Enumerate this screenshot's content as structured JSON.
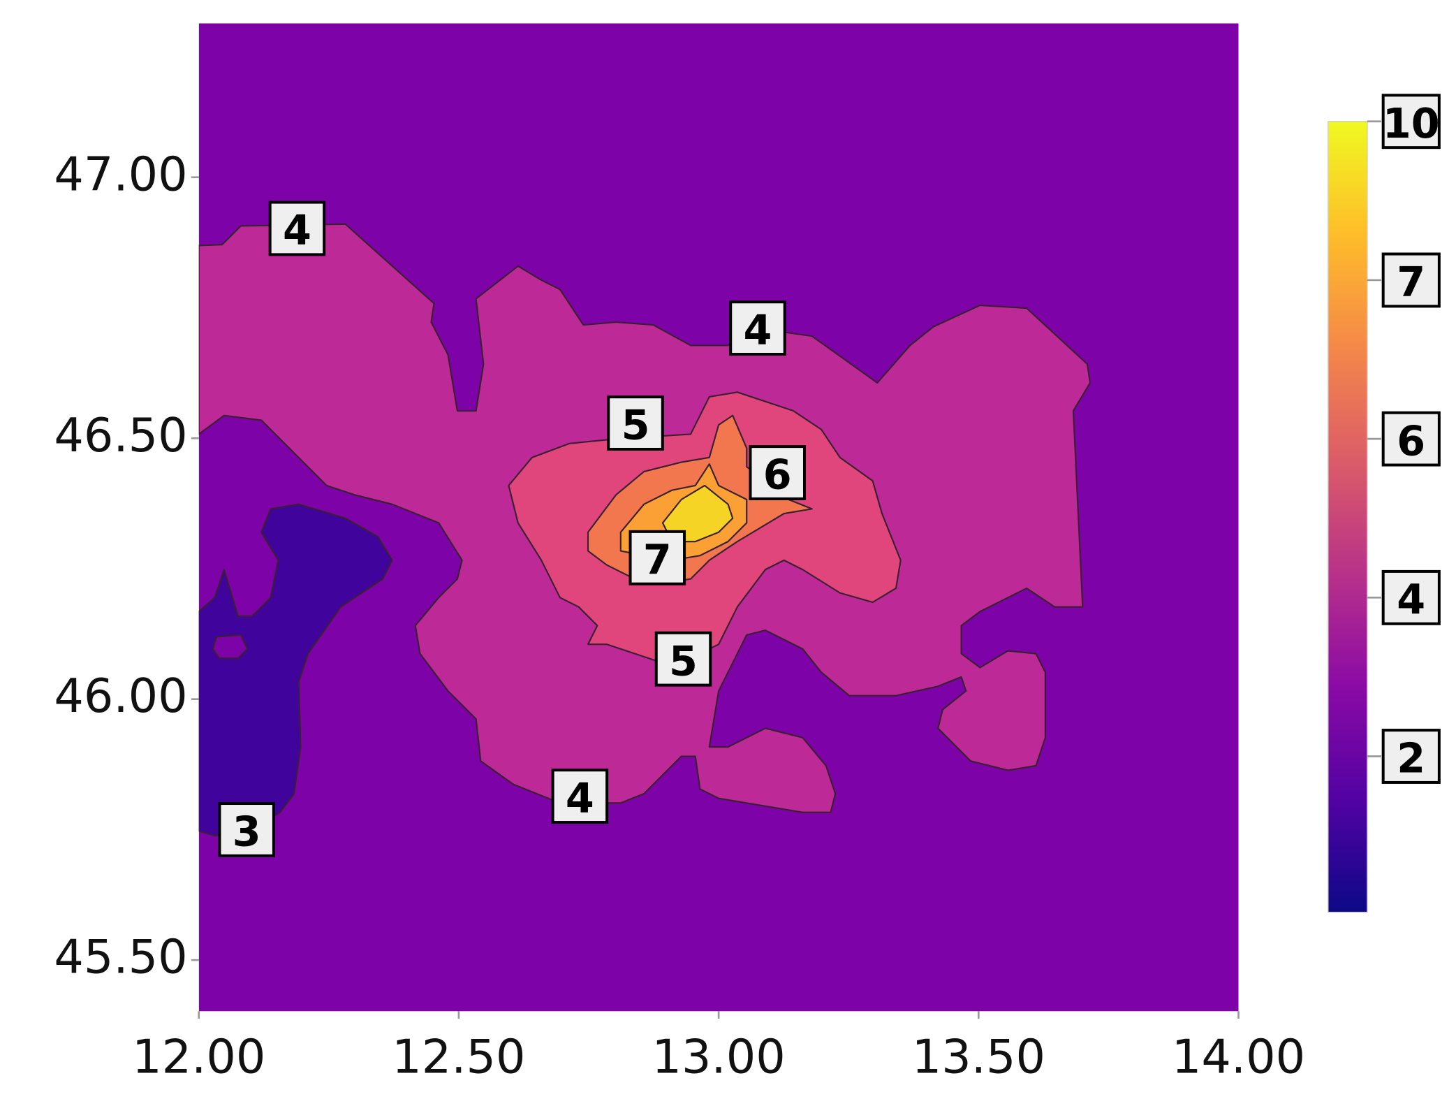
{
  "chart_data": {
    "type": "contour",
    "xlim": [
      12,
      14
    ],
    "ylim": [
      45.402,
      47.295
    ],
    "xticks": [
      {
        "value": 12,
        "label": "12.00"
      },
      {
        "value": 12.5,
        "label": "12.50"
      },
      {
        "value": 13,
        "label": "13.00"
      },
      {
        "value": 13.5,
        "label": "13.50"
      },
      {
        "value": 14,
        "label": "14.00"
      }
    ],
    "yticks": [
      {
        "value": 45.5,
        "label": "45.50"
      },
      {
        "value": 46,
        "label": "46.00"
      },
      {
        "value": 46.5,
        "label": "46.50"
      },
      {
        "value": 47,
        "label": "47.00"
      }
    ],
    "colormap": "plasma",
    "colorbar_ticks": [
      10,
      7,
      6,
      4,
      2
    ],
    "contour_labels": [
      {
        "value": 4,
        "x": 12.189,
        "y": 46.902
      },
      {
        "value": 4,
        "x": 13.075,
        "y": 46.711
      },
      {
        "value": 5,
        "x": 12.84,
        "y": 46.529
      },
      {
        "value": 6,
        "x": 13.113,
        "y": 46.434
      },
      {
        "value": 7,
        "x": 12.882,
        "y": 46.271
      },
      {
        "value": 5,
        "x": 12.932,
        "y": 46.077
      },
      {
        "value": 4,
        "x": 12.733,
        "y": 45.814
      },
      {
        "value": 3,
        "x": 12.092,
        "y": 45.75
      }
    ]
  }
}
